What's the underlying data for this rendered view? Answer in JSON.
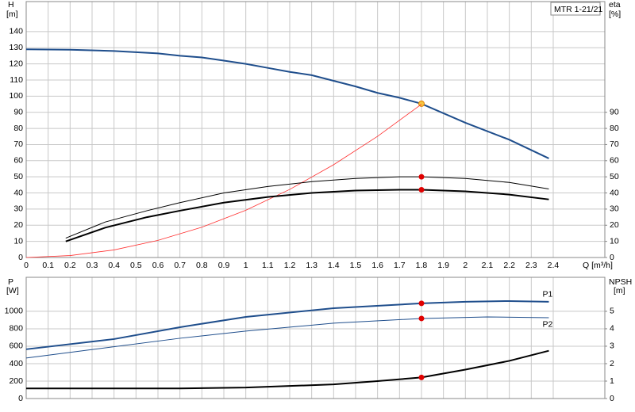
{
  "chart_data": [
    {
      "type": "line",
      "legend": "MTR 1-21/21",
      "ylabel": "H",
      "yunit": "[m]",
      "y2label": "eta",
      "y2unit": "[%]",
      "xlabel": "Q [m³/h]",
      "xlim": [
        0,
        2.635
      ],
      "ylim": [
        0,
        158.6
      ],
      "y2lim": [
        0,
        158.6
      ],
      "xticks": [
        0,
        0.1,
        0.2,
        0.3,
        0.4,
        0.5,
        0.6,
        0.7,
        0.8,
        0.9,
        1.0,
        1.1,
        1.2,
        1.3,
        1.4,
        1.5,
        1.6,
        1.7,
        1.8,
        1.9,
        2.0,
        2.1,
        2.2,
        2.3,
        2.4
      ],
      "yticks": [
        0,
        10,
        20,
        30,
        40,
        50,
        60,
        70,
        80,
        90,
        100,
        110,
        120,
        130,
        140
      ],
      "y2ticks": [
        0,
        10,
        20,
        30,
        40,
        50,
        60,
        70,
        80,
        90
      ],
      "grid": true,
      "series": [
        {
          "color": "#1f4e8c",
          "axis": "y",
          "marker_x": 1.8,
          "marker_color": "#f5c542",
          "x": [
            0,
            0.2,
            0.4,
            0.6,
            0.7,
            0.8,
            0.9,
            1.0,
            1.1,
            1.2,
            1.3,
            1.4,
            1.5,
            1.6,
            1.7,
            1.8,
            2.0,
            2.2,
            2.38
          ],
          "values": [
            129,
            128.8,
            128,
            126.5,
            125,
            124,
            122,
            120,
            117.5,
            115,
            113,
            109.5,
            106,
            102,
            99,
            95.3,
            83.5,
            73,
            61.4
          ]
        },
        {
          "color": "#ff3030",
          "axis": "y",
          "x": [
            0,
            0.2,
            0.4,
            0.6,
            0.8,
            1.0,
            1.2,
            1.4,
            1.6,
            1.8
          ],
          "values": [
            0,
            1.2,
            4.7,
            10.6,
            18.8,
            29.3,
            42.2,
            57.5,
            75.1,
            95
          ]
        },
        {
          "color": "#000000",
          "axis": "y2",
          "marker_x": 1.8,
          "marker_color": "#e00000",
          "x": [
            0.18,
            0.36,
            0.55,
            0.7,
            0.9,
            1.1,
            1.3,
            1.5,
            1.7,
            1.8,
            2.0,
            2.2,
            2.38
          ],
          "values": [
            12,
            22,
            29,
            34,
            40,
            44,
            47,
            49,
            50,
            50,
            49,
            46.5,
            42.5
          ]
        },
        {
          "color": "#000000",
          "axis": "y2",
          "marker_x": 1.8,
          "marker_color": "#e00000",
          "x": [
            0.18,
            0.36,
            0.55,
            0.7,
            0.9,
            1.1,
            1.3,
            1.5,
            1.7,
            1.8,
            2.0,
            2.2,
            2.38
          ],
          "values": [
            10,
            18.5,
            25,
            29,
            34,
            37.5,
            40,
            41.5,
            42,
            42,
            41,
            39,
            36
          ]
        }
      ]
    },
    {
      "type": "line",
      "ylabel": "P",
      "yunit": "[W]",
      "y2label": "NPSH",
      "y2unit": "[m]",
      "xlim": [
        0,
        2.635
      ],
      "ylim": [
        0,
        1390
      ],
      "y2lim": [
        0,
        6.95
      ],
      "yticks": [
        0,
        200,
        400,
        600,
        800,
        1000
      ],
      "y2ticks": [
        0,
        1,
        2,
        3,
        4,
        5
      ],
      "grid": true,
      "series": [
        {
          "name": "P1",
          "color": "#1f4e8c",
          "axis": "y",
          "marker_x": 1.8,
          "marker_color": "#e00000",
          "x": [
            0,
            0.4,
            0.7,
            1.0,
            1.4,
            1.8,
            2.0,
            2.2,
            2.38
          ],
          "values": [
            565,
            682,
            818,
            936,
            1036,
            1091,
            1109,
            1118,
            1109
          ]
        },
        {
          "name": "P2",
          "color": "#1f4e8c",
          "axis": "y",
          "marker_x": 1.8,
          "marker_color": "#e00000",
          "x": [
            0,
            0.7,
            1.0,
            1.4,
            1.8,
            2.1,
            2.38
          ],
          "values": [
            464,
            691,
            773,
            864,
            918,
            936,
            927
          ]
        },
        {
          "color": "#000000",
          "axis": "y2",
          "marker_x": 1.8,
          "marker_color": "#e00000",
          "x": [
            0,
            0.7,
            1.0,
            1.4,
            1.6,
            1.8,
            2.0,
            2.2,
            2.38
          ],
          "values": [
            0.58,
            0.58,
            0.63,
            0.81,
            1.0,
            1.21,
            1.66,
            2.16,
            2.74
          ]
        }
      ]
    }
  ]
}
